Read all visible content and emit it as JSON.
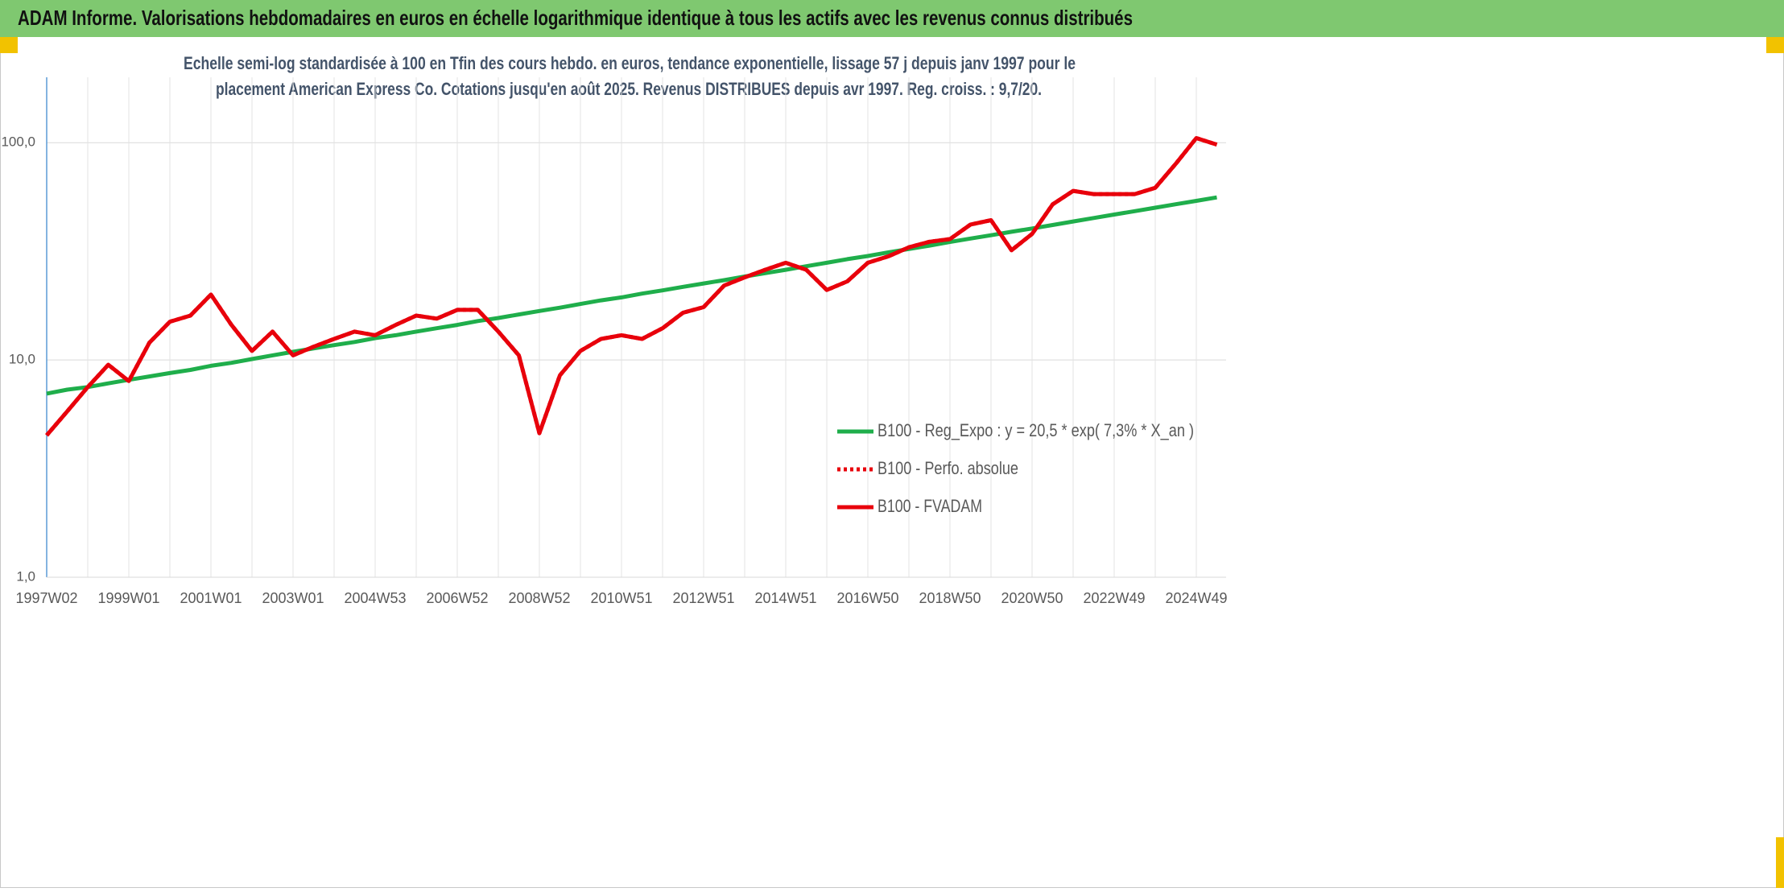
{
  "header": {
    "title": "ADAM Informe. Valorisations hebdomadaires en euros en échelle logarithmique identique à tous les actifs avec les revenus connus distribués"
  },
  "chart_data": {
    "type": "line",
    "subtitle": [
      "Echelle semi-log standardisée à 100 en Tfin des cours hebdo. en euros, tendance exponentielle, lissage 57 j depuis janv 1997 pour le",
      "placement American Express Co. Cotations jusqu'en août 2025. Revenus DISTRIBUES depuis avr 1997. Reg. croiss. : 9,7/20."
    ],
    "categories": [
      "1997W02",
      null,
      null,
      null,
      "1999W01",
      null,
      null,
      null,
      "2001W01",
      null,
      null,
      null,
      "2003W01",
      null,
      null,
      null,
      "2004W53",
      null,
      null,
      null,
      "2006W52",
      null,
      null,
      null,
      "2008W52",
      null,
      null,
      null,
      "2010W51",
      null,
      null,
      null,
      "2012W51",
      null,
      null,
      null,
      "2014W51",
      null,
      null,
      null,
      "2016W50",
      null,
      null,
      null,
      "2018W50",
      null,
      null,
      null,
      "2020W50",
      null,
      null,
      null,
      "2022W49",
      null,
      null,
      null,
      "2024W49",
      null
    ],
    "series": [
      {
        "name": "B100 - Reg_Expo : y = 20,5 * exp( 7,3% *  X_an )",
        "color": "#1fae4b",
        "style": "solid",
        "values": [
          7.0,
          7.3,
          7.5,
          7.8,
          8.1,
          8.4,
          8.7,
          9.0,
          9.4,
          9.7,
          10.1,
          10.5,
          10.9,
          11.3,
          11.7,
          12.1,
          12.6,
          13.0,
          13.5,
          14.0,
          14.5,
          15.1,
          15.6,
          16.2,
          16.8,
          17.4,
          18.1,
          18.8,
          19.4,
          20.2,
          20.9,
          21.7,
          22.5,
          23.3,
          24.2,
          25.1,
          26.0,
          27.0,
          28.0,
          29.1,
          30.1,
          31.3,
          32.4,
          33.6,
          34.9,
          36.2,
          37.5,
          38.9,
          40.3,
          41.8,
          43.4,
          45.0,
          46.7,
          48.4,
          50.2,
          52.1,
          54.0,
          56.0
        ]
      },
      {
        "name": "B100 - Perfo. absolue",
        "color": "#e8000b",
        "style": "dotted",
        "values": [
          4.5,
          5.8,
          7.5,
          9.5,
          8.0,
          12.0,
          15.0,
          16.0,
          20.0,
          14.5,
          11.0,
          13.5,
          10.5,
          11.5,
          12.5,
          13.5,
          13.0,
          14.5,
          16.0,
          15.5,
          17.0,
          17.0,
          13.5,
          10.5,
          4.6,
          8.5,
          11.0,
          12.5,
          13.0,
          12.5,
          14.0,
          16.5,
          17.5,
          22.0,
          24.0,
          26.0,
          28.0,
          26.0,
          21.0,
          23.0,
          28.0,
          30.0,
          33.0,
          35.0,
          36.0,
          42.0,
          44.0,
          32.0,
          38.0,
          52.0,
          60.0,
          58.0,
          58.0,
          58.0,
          62.0,
          80.0,
          105.0,
          98.0
        ]
      },
      {
        "name": "B100 - FVADAM",
        "color": "#e8000b",
        "style": "solid",
        "values": [
          4.5,
          5.8,
          7.5,
          9.5,
          8.0,
          12.0,
          15.0,
          16.0,
          20.0,
          14.5,
          11.0,
          13.5,
          10.5,
          11.5,
          12.5,
          13.5,
          13.0,
          14.5,
          16.0,
          15.5,
          17.0,
          17.0,
          13.5,
          10.5,
          4.6,
          8.5,
          11.0,
          12.5,
          13.0,
          12.5,
          14.0,
          16.5,
          17.5,
          22.0,
          24.0,
          26.0,
          28.0,
          26.0,
          21.0,
          23.0,
          28.0,
          30.0,
          33.0,
          35.0,
          36.0,
          42.0,
          44.0,
          32.0,
          38.0,
          52.0,
          60.0,
          58.0,
          58.0,
          58.0,
          62.0,
          80.0,
          105.0,
          98.0
        ]
      }
    ],
    "ylim": [
      1,
      200
    ],
    "log_scale": true,
    "yticks": [
      {
        "value": 1,
        "label": "1,0"
      },
      {
        "value": 10,
        "label": "10,0"
      },
      {
        "value": 100,
        "label": "100,0"
      }
    ],
    "grid": true,
    "legend": "right"
  }
}
